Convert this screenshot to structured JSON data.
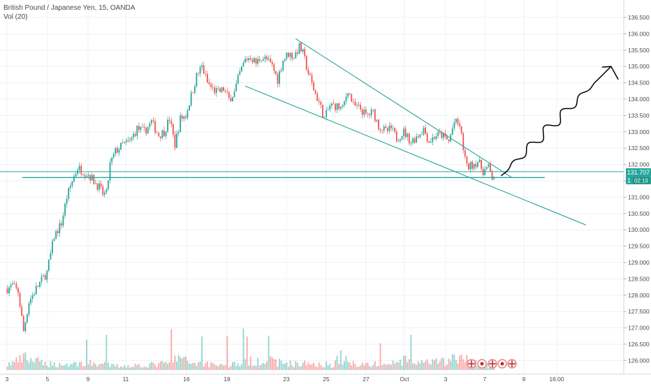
{
  "chart_data": {
    "type": "candlestick",
    "title": "British Pound / Japanese Yen, 15, OANDA",
    "volume_label": "Vol (20)",
    "ylim": [
      125.8,
      136.8
    ],
    "y_ticks": [
      126.0,
      126.5,
      127.0,
      127.5,
      128.0,
      128.5,
      129.0,
      129.5,
      130.0,
      130.5,
      131.0,
      131.5,
      132.0,
      132.5,
      133.0,
      133.5,
      134.0,
      134.5,
      135.0,
      135.5,
      136.0,
      136.5
    ],
    "x_ticks": [
      "3",
      "5",
      "9",
      "11",
      "16",
      "18",
      "23",
      "25",
      "27",
      "Oct",
      "3",
      "7",
      "9",
      "16:00"
    ],
    "last_price": "131.707",
    "price_partial": "1",
    "countdown": "02:19",
    "horizontal_levels": [
      131.78,
      131.6
    ],
    "colors": {
      "up": "#26a69a",
      "down": "#ef5350",
      "drawing": "#26a69a",
      "arrow": "#000000",
      "price_box": "#26a69a",
      "grid": "#eef1f4",
      "axis_text": "#4a4a4a"
    },
    "price_path": [
      [
        0.0,
        128.2
      ],
      [
        0.3,
        128.3
      ],
      [
        0.6,
        128.1
      ],
      [
        0.9,
        126.9
      ],
      [
        1.2,
        127.8
      ],
      [
        1.6,
        128.2
      ],
      [
        2.2,
        128.7
      ],
      [
        2.6,
        129.8
      ],
      [
        3.0,
        130.2
      ],
      [
        3.3,
        131.0
      ],
      [
        3.6,
        131.5
      ],
      [
        3.9,
        131.9
      ],
      [
        4.2,
        131.8
      ],
      [
        4.5,
        131.7
      ],
      [
        4.8,
        131.5
      ],
      [
        5.1,
        131.3
      ],
      [
        5.3,
        131.1
      ],
      [
        5.5,
        131.1
      ],
      [
        5.7,
        132.0
      ],
      [
        6.0,
        132.4
      ],
      [
        6.4,
        132.6
      ],
      [
        6.8,
        132.7
      ],
      [
        7.2,
        133.1
      ],
      [
        7.6,
        133.0
      ],
      [
        8.0,
        133.3
      ],
      [
        8.4,
        132.9
      ],
      [
        8.7,
        133.0
      ],
      [
        9.0,
        133.4
      ],
      [
        9.3,
        132.6
      ],
      [
        9.6,
        133.4
      ],
      [
        9.9,
        133.5
      ],
      [
        10.2,
        134.1
      ],
      [
        10.5,
        134.7
      ],
      [
        10.8,
        135.0
      ],
      [
        11.1,
        134.5
      ],
      [
        11.4,
        134.3
      ],
      [
        11.7,
        134.2
      ],
      [
        12.0,
        134.3
      ],
      [
        12.3,
        134.0
      ],
      [
        12.6,
        134.2
      ],
      [
        12.9,
        134.8
      ],
      [
        13.2,
        135.2
      ],
      [
        13.5,
        135.3
      ],
      [
        13.8,
        135.1
      ],
      [
        14.1,
        135.3
      ],
      [
        14.4,
        135.2
      ],
      [
        14.7,
        135.0
      ],
      [
        15.0,
        134.6
      ],
      [
        15.3,
        135.2
      ],
      [
        15.6,
        135.4
      ],
      [
        15.9,
        135.3
      ],
      [
        16.2,
        135.6
      ],
      [
        16.4,
        135.4
      ],
      [
        16.7,
        134.8
      ],
      [
        17.0,
        134.3
      ],
      [
        17.3,
        133.9
      ],
      [
        17.6,
        133.4
      ],
      [
        17.9,
        133.8
      ],
      [
        18.2,
        133.8
      ],
      [
        18.6,
        133.7
      ],
      [
        18.9,
        134.3
      ],
      [
        19.2,
        133.8
      ],
      [
        19.6,
        133.7
      ],
      [
        19.9,
        133.5
      ],
      [
        20.3,
        133.6
      ],
      [
        20.6,
        133.2
      ],
      [
        21.0,
        133.0
      ],
      [
        21.3,
        133.1
      ],
      [
        21.6,
        132.8
      ],
      [
        22.0,
        133.0
      ],
      [
        22.4,
        132.7
      ],
      [
        22.8,
        132.9
      ],
      [
        23.1,
        133.1
      ],
      [
        23.4,
        132.7
      ],
      [
        23.8,
        132.9
      ],
      [
        24.1,
        132.9
      ],
      [
        24.5,
        132.7
      ],
      [
        24.8,
        133.3
      ],
      [
        25.1,
        133.2
      ],
      [
        25.3,
        132.5
      ],
      [
        25.5,
        131.9
      ],
      [
        25.8,
        132.0
      ],
      [
        26.1,
        132.1
      ],
      [
        26.4,
        131.8
      ],
      [
        26.7,
        131.9
      ],
      [
        26.9,
        131.6
      ],
      [
        27.1,
        131.7
      ]
    ],
    "volume_profile": [
      [
        0,
        0.4
      ],
      [
        1,
        0.9
      ],
      [
        2,
        0.5
      ],
      [
        3,
        0.4
      ],
      [
        4,
        0.5
      ],
      [
        5,
        0.5
      ],
      [
        6,
        0.3
      ],
      [
        7,
        0.35
      ],
      [
        8,
        0.4
      ],
      [
        9,
        0.5
      ],
      [
        9.5,
        1.0
      ],
      [
        10,
        0.6
      ],
      [
        11,
        0.5
      ],
      [
        12,
        0.4
      ],
      [
        13,
        0.5
      ],
      [
        14,
        0.8
      ],
      [
        15,
        0.6
      ],
      [
        16,
        0.45
      ],
      [
        17,
        0.5
      ],
      [
        18,
        0.4
      ],
      [
        18.5,
        1.0
      ],
      [
        19,
        0.5
      ],
      [
        20,
        0.45
      ],
      [
        21,
        0.4
      ],
      [
        22,
        0.7
      ],
      [
        23,
        0.5
      ],
      [
        24,
        0.6
      ],
      [
        25,
        0.9
      ],
      [
        26,
        0.6
      ],
      [
        27,
        0.3
      ],
      [
        28,
        0
      ]
    ],
    "trendlines": [
      {
        "from": [
          16.0,
          135.85
        ],
        "to": [
          28.0,
          131.6
        ]
      },
      {
        "from": [
          13.2,
          134.4
        ],
        "to": [
          32.1,
          130.15
        ]
      }
    ],
    "forecast_wave": {
      "from": [
        27.4,
        131.65
      ],
      "to": [
        33.5,
        135.0
      ]
    },
    "arrow_head": {
      "tip": [
        33.5,
        135.0
      ],
      "left": [
        33.0,
        134.98
      ],
      "right": [
        33.9,
        134.6
      ]
    }
  }
}
